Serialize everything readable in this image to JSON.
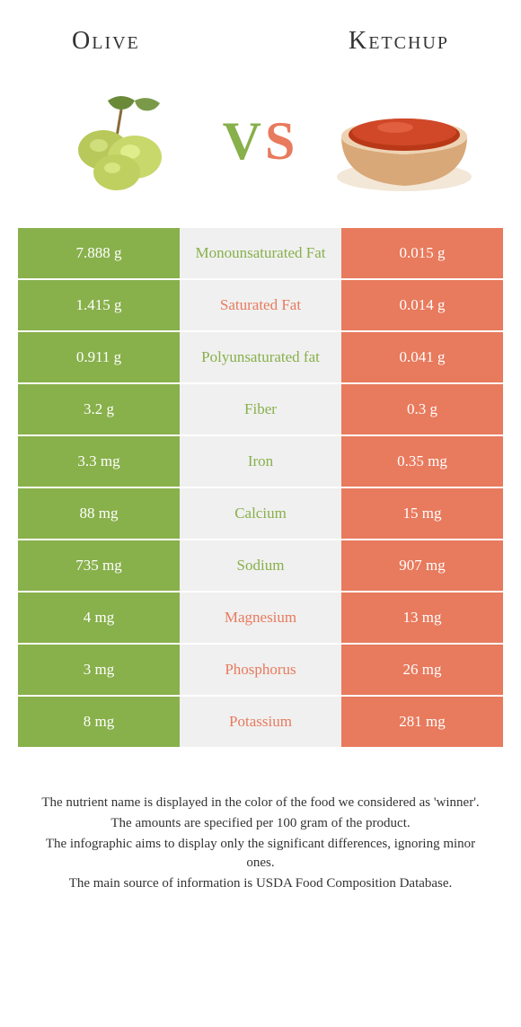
{
  "header": {
    "left": "Olive",
    "right": "Ketchup"
  },
  "vs": {
    "v": "V",
    "s": "S"
  },
  "colors": {
    "olive": "#88b04b",
    "ketchup": "#e87a5d",
    "mid_bg": "#f0f0f0",
    "text_white": "#ffffff"
  },
  "rows": [
    {
      "left": "7.888 g",
      "mid": "Monounsaturated Fat",
      "right": "0.015 g",
      "winner": "olive"
    },
    {
      "left": "1.415 g",
      "mid": "Saturated Fat",
      "right": "0.014 g",
      "winner": "ketchup"
    },
    {
      "left": "0.911 g",
      "mid": "Polyunsaturated fat",
      "right": "0.041 g",
      "winner": "olive"
    },
    {
      "left": "3.2 g",
      "mid": "Fiber",
      "right": "0.3 g",
      "winner": "olive"
    },
    {
      "left": "3.3 mg",
      "mid": "Iron",
      "right": "0.35 mg",
      "winner": "olive"
    },
    {
      "left": "88 mg",
      "mid": "Calcium",
      "right": "15 mg",
      "winner": "olive"
    },
    {
      "left": "735 mg",
      "mid": "Sodium",
      "right": "907 mg",
      "winner": "olive"
    },
    {
      "left": "4 mg",
      "mid": "Magnesium",
      "right": "13 mg",
      "winner": "ketchup"
    },
    {
      "left": "3 mg",
      "mid": "Phosphorus",
      "right": "26 mg",
      "winner": "ketchup"
    },
    {
      "left": "8 mg",
      "mid": "Potassium",
      "right": "281 mg",
      "winner": "ketchup"
    }
  ],
  "footer": {
    "line1": "The nutrient name is displayed in the color of the food we considered as 'winner'.",
    "line2": "The amounts are specified per 100 gram of the product.",
    "line3": "The infographic aims to display only the significant differences, ignoring minor ones.",
    "line4": "The main source of information is USDA Food Composition Database."
  }
}
